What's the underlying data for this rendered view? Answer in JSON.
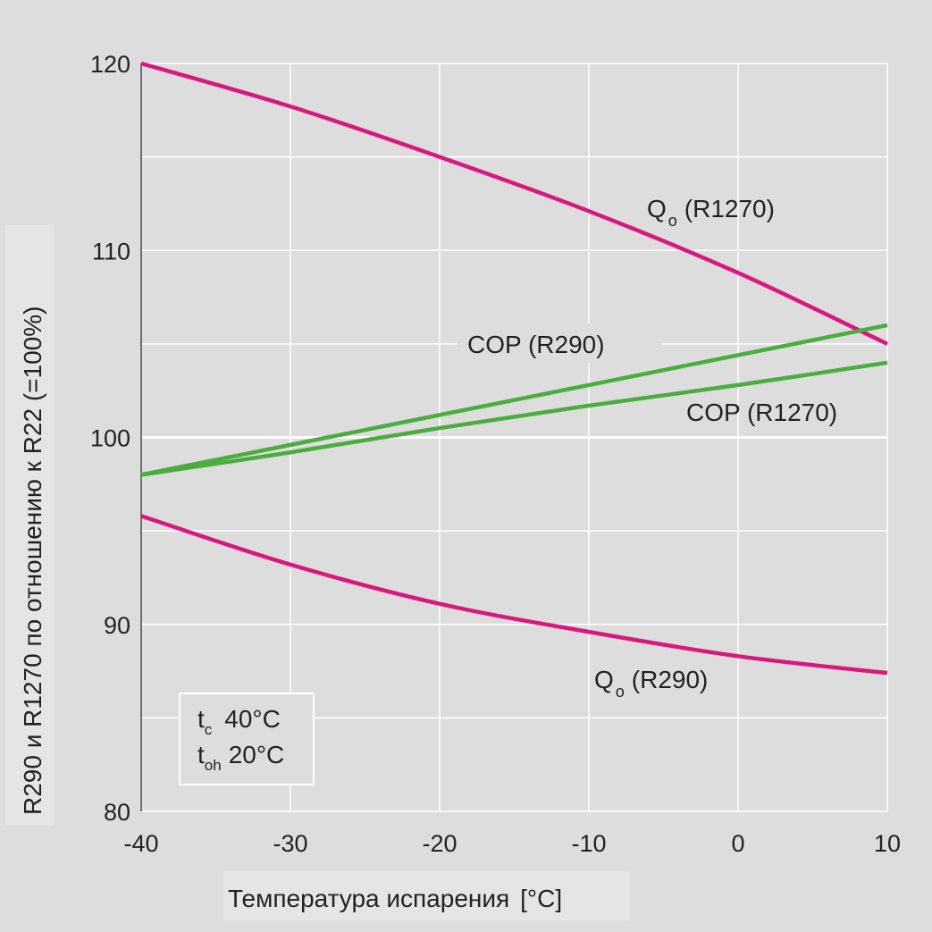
{
  "chart_data": {
    "type": "line",
    "xlabel": "Температура испарения",
    "xlabel_unit": "[°C]",
    "ylabel": "R290 и R1270 по отношению к R22 (=100%)",
    "xlim": [
      -40,
      10
    ],
    "ylim": [
      80,
      120
    ],
    "x_ticks": [
      "-40",
      "-30",
      "-20",
      "-10",
      "0",
      "10"
    ],
    "y_ticks": [
      "80",
      "90",
      "100",
      "110",
      "120"
    ],
    "grid": true,
    "x": [
      -40,
      -30,
      -20,
      -10,
      0,
      10
    ],
    "series": [
      {
        "label": {
          "main": "Q",
          "sub": "o",
          "rest": "(R1270)"
        },
        "color": "#d8187f",
        "values": [
          120.0,
          117.7,
          115.0,
          112.1,
          108.8,
          105.0
        ]
      },
      {
        "label": {
          "main": "Q",
          "sub": "o",
          "rest": "(R290)"
        },
        "color": "#d8187f",
        "values": [
          95.8,
          93.2,
          91.1,
          89.6,
          88.3,
          87.4
        ]
      },
      {
        "label": {
          "main": "COP (R290)"
        },
        "color": "#4aad3e",
        "values": [
          98.0,
          99.6,
          101.2,
          102.8,
          104.4,
          106.0
        ]
      },
      {
        "label": {
          "main": "COP (R1270)"
        },
        "color": "#4aad3e",
        "values": [
          98.0,
          99.2,
          100.5,
          101.7,
          102.8,
          104.0
        ]
      }
    ],
    "annotation": {
      "line1": {
        "main": "t",
        "sub": "c",
        "value": "40°C"
      },
      "line2": {
        "main": "t",
        "sub": "oh",
        "value": "20°C"
      }
    }
  }
}
